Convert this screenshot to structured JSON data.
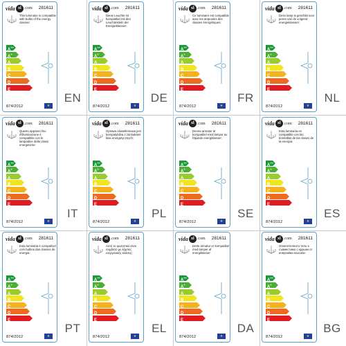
{
  "brand": {
    "name": "vida",
    "badge": "xl",
    "suffix": ".com"
  },
  "sku": "281611",
  "regulation": "874/2012",
  "eu_flag": "eu-flag-icon",
  "energy_classes": [
    {
      "letter": "A",
      "sup": "++",
      "color": "#1a9a3a"
    },
    {
      "letter": "A",
      "sup": "+",
      "color": "#4caf33"
    },
    {
      "letter": "A",
      "sup": "",
      "color": "#9acb2f"
    },
    {
      "letter": "B",
      "sup": "",
      "color": "#f0e51e"
    },
    {
      "letter": "C",
      "sup": "",
      "color": "#f5b21c"
    },
    {
      "letter": "D",
      "sup": "",
      "color": "#ec6b1f"
    },
    {
      "letter": "E",
      "sup": "",
      "color": "#e21b23"
    }
  ],
  "colors": {
    "card_border": "#5aa0c8",
    "bracket": "#5aa0c8"
  },
  "labels": [
    {
      "lang": "EN",
      "text": "This luminaire is compatible with bulbs of the energy classes:"
    },
    {
      "lang": "DE",
      "text": "Diese Leuchte ist kompatibel mit den Leuchtmitteln der Energieklassen:"
    },
    {
      "lang": "FR",
      "text": "Ce luminaire est compatible avec les ampoules des classes énergétiques:"
    },
    {
      "lang": "NL",
      "text": "Deze lamp is geschikt voor peren van de volgend energieklassen:"
    },
    {
      "lang": "IT",
      "text": "Questo apparecchio d'illuminazione è compatibile con le lampadine delle classi energetiche:"
    },
    {
      "lang": "PL",
      "text": "Oprawa oświetleniowa jest kompatybilna z żarówkami klas energetycznych:"
    },
    {
      "lang": "SE",
      "text": "Denna armatur är kompatibel med lampor av följande energiklasser:"
    },
    {
      "lang": "ES",
      "text": "Esta luminaria es compatible con las bombillas de las clases de la energía:"
    },
    {
      "lang": "PT",
      "text": "Esta luminária é compatível com bulbos das classes de energia:"
    },
    {
      "lang": "EL",
      "text": "Αυτό το φωτιστικό είναι συμβατό με λάμπες ενεργειακής κλάσης:"
    },
    {
      "lang": "DA",
      "text": "Dette armatur er kompatibel med lamper af energiklasser:"
    },
    {
      "lang": "BG",
      "text": "Осветителното тяло е съвместимо с крушки от енергийни класове:"
    }
  ]
}
